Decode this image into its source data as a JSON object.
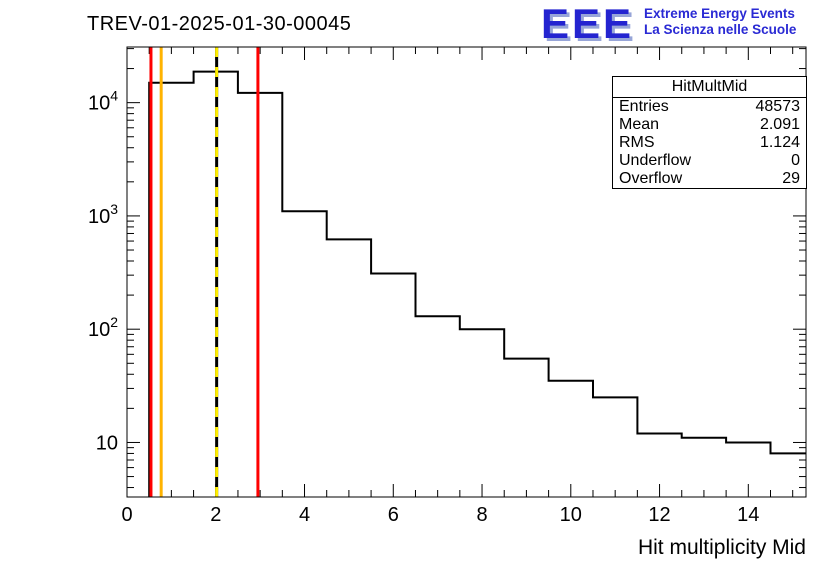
{
  "title": "TREV-01-2025-01-30-00045",
  "logo": {
    "text": "EEE",
    "line1": "Extreme Energy Events",
    "line2": "La Scienza nelle Scuole",
    "color": "#2a2ad4"
  },
  "stats": {
    "title": "HitMultMid",
    "rows": [
      {
        "label": "Entries",
        "value": "48573"
      },
      {
        "label": "Mean",
        "value": "2.091"
      },
      {
        "label": "RMS",
        "value": "1.124"
      },
      {
        "label": "Underflow",
        "value": "0"
      },
      {
        "label": "Overflow",
        "value": "29"
      }
    ]
  },
  "chart_data": {
    "type": "bar",
    "style": "step-histogram",
    "title": "TREV-01-2025-01-30-00045",
    "xlabel": "Hit multiplicity Mid",
    "ylabel": "",
    "y_scale": "log",
    "grid": false,
    "legend": "none",
    "xlim": [
      0,
      15.3
    ],
    "ylim": [
      3.3,
      31000
    ],
    "x_major_ticks": [
      0,
      2,
      4,
      6,
      8,
      10,
      12,
      14
    ],
    "x_minor_step": 0.5,
    "y_major_ticks": [
      10,
      100,
      1000,
      10000
    ],
    "y_tick_labels": [
      "10",
      "10^2",
      "10^3",
      "10^4"
    ],
    "bin_edges": [
      0.5,
      1.5,
      2.5,
      3.5,
      4.5,
      5.5,
      6.5,
      7.5,
      8.5,
      9.5,
      10.5,
      11.5,
      12.5,
      13.5,
      14.5,
      15.5
    ],
    "counts": [
      15000,
      18800,
      12200,
      1100,
      620,
      310,
      130,
      100,
      55,
      35,
      25,
      12,
      11,
      10,
      8
    ],
    "marker_lines": [
      {
        "x": 0.54,
        "color": "#ff0000",
        "style": "solid",
        "name": "threshold-red-low"
      },
      {
        "x": 0.77,
        "color": "#ffb300",
        "style": "solid",
        "name": "threshold-yellow-low"
      },
      {
        "x": 2.02,
        "color": "#ffee00",
        "style": "dashed",
        "underlay": "#000000",
        "name": "mean-marker-dashed"
      },
      {
        "x": 2.95,
        "color": "#ff0000",
        "style": "solid",
        "name": "threshold-red-high"
      }
    ]
  }
}
